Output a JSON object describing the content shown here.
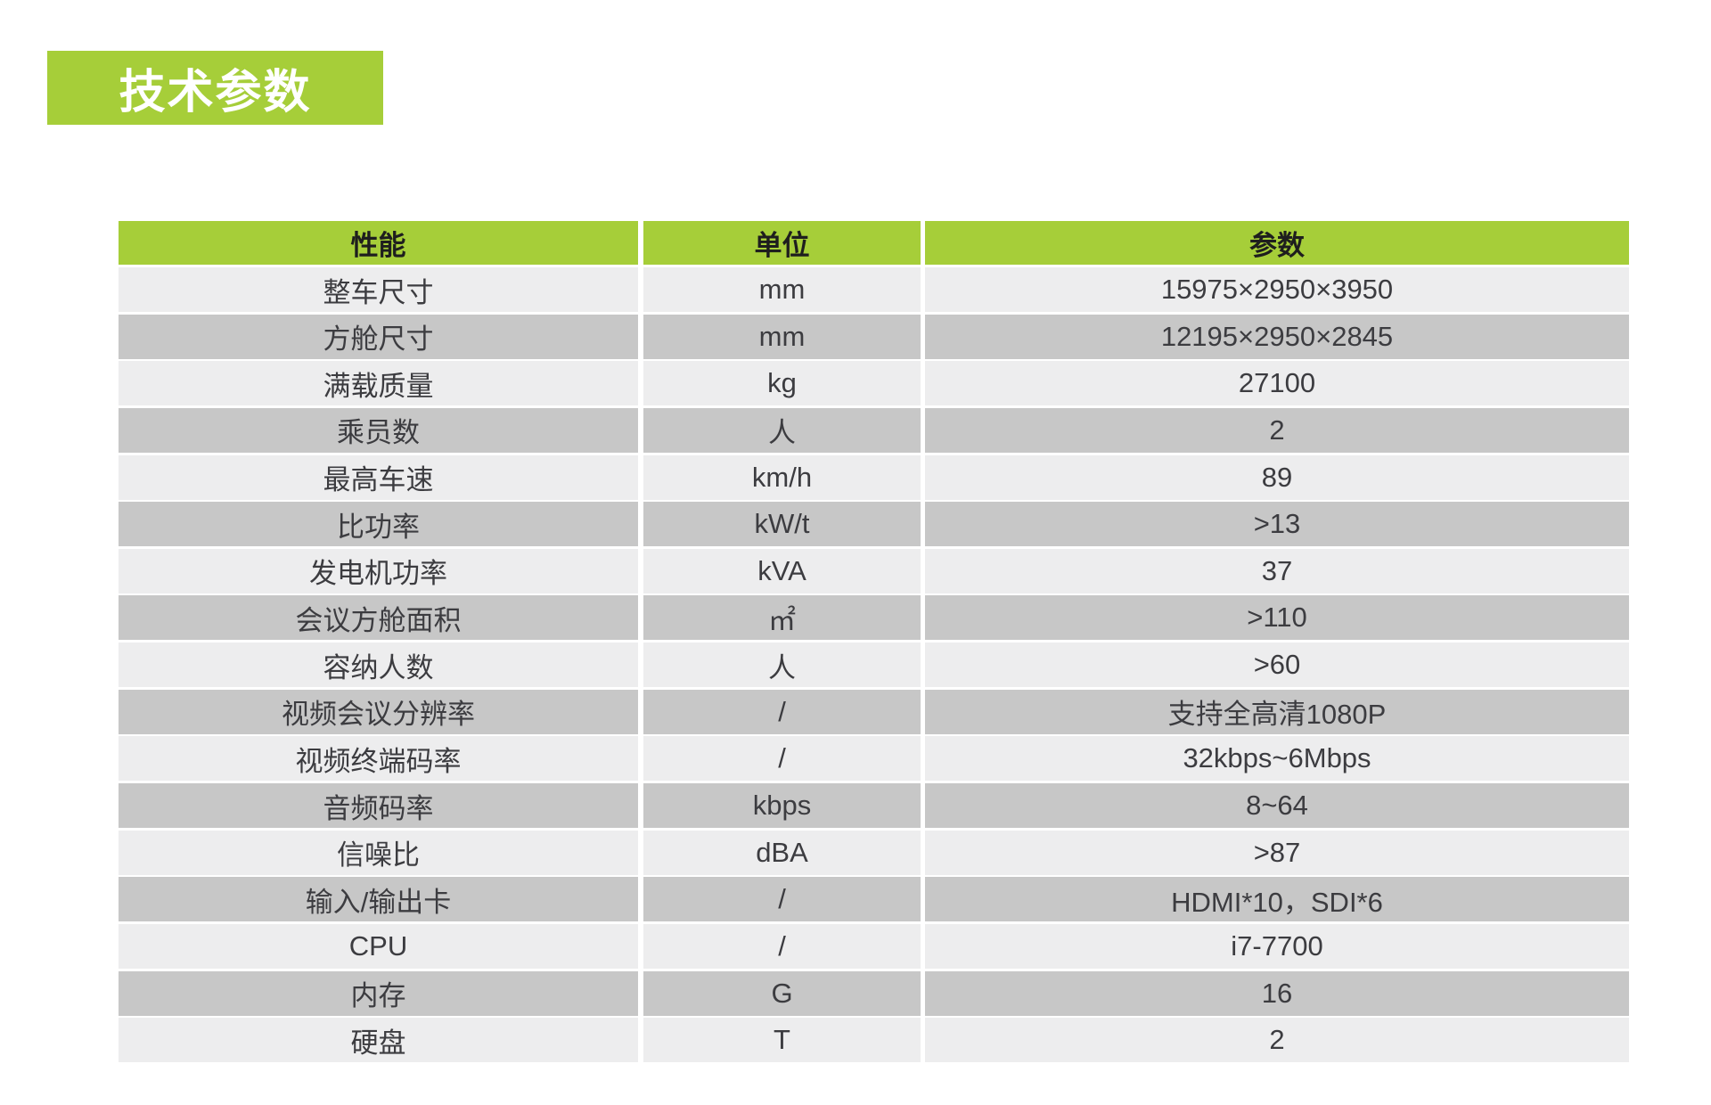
{
  "page": {
    "background_color": "#FFFFFF"
  },
  "title": {
    "text": "技术参数",
    "bg_color": "#A6CE39",
    "text_color": "#FFFFFF"
  },
  "table": {
    "header_bg": "#A6CE39",
    "row_colors": {
      "odd": "#EDEDEE",
      "even": "#C7C7C7"
    },
    "columns": [
      {
        "label": "性能"
      },
      {
        "label": "单位"
      },
      {
        "label": "参数"
      }
    ],
    "rows": [
      {
        "name": "整车尺寸",
        "unit": "mm",
        "value": "15975×2950×3950"
      },
      {
        "name": "方舱尺寸",
        "unit": "mm",
        "value": "12195×2950×2845"
      },
      {
        "name": "满载质量",
        "unit": "kg",
        "value": "27100"
      },
      {
        "name": "乘员数",
        "unit": "人",
        "value": "2"
      },
      {
        "name": "最高车速",
        "unit": "km/h",
        "value": "89"
      },
      {
        "name": "比功率",
        "unit": "kW/t",
        "value": ">13"
      },
      {
        "name": "发电机功率",
        "unit": "kVA",
        "value": "37"
      },
      {
        "name": "会议方舱面积",
        "unit": "㎡",
        "value": ">110"
      },
      {
        "name": "容纳人数",
        "unit": "人",
        "value": ">60"
      },
      {
        "name": "视频会议分辨率",
        "unit": "/",
        "value": "支持全高清1080P"
      },
      {
        "name": "视频终端码率",
        "unit": "/",
        "value": "32kbps~6Mbps"
      },
      {
        "name": "音频码率",
        "unit": "kbps",
        "value": "8~64"
      },
      {
        "name": "信噪比",
        "unit": "dBA",
        "value": ">87"
      },
      {
        "name": "输入/输出卡",
        "unit": "/",
        "value": "HDMI*10，SDI*6"
      },
      {
        "name": "CPU",
        "unit": "/",
        "value": "i7-7700"
      },
      {
        "name": "内存",
        "unit": "G",
        "value": "16"
      },
      {
        "name": "硬盘",
        "unit": "T",
        "value": "2"
      }
    ]
  }
}
